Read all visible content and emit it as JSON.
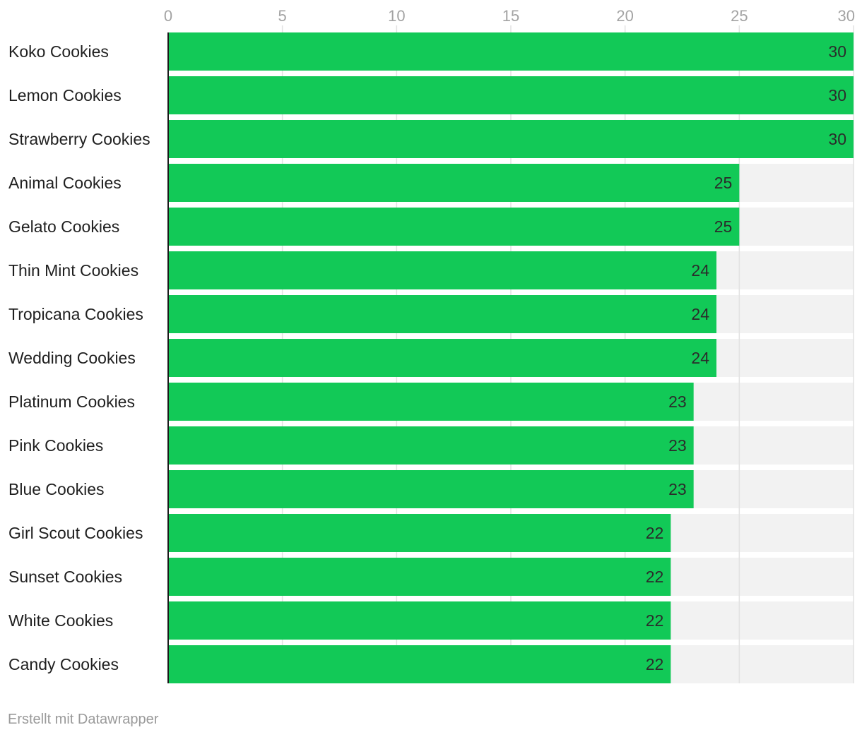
{
  "chart_data": {
    "type": "bar",
    "orientation": "horizontal",
    "categories": [
      "Koko Cookies",
      "Lemon Cookies",
      "Strawberry Cookies",
      "Animal Cookies",
      "Gelato Cookies",
      "Thin Mint Cookies",
      "Tropicana Cookies",
      "Wedding Cookies",
      "Platinum Cookies",
      "Pink Cookies",
      "Blue Cookies",
      "Girl Scout Cookies",
      "Sunset Cookies",
      "White Cookies",
      "Candy Cookies"
    ],
    "values": [
      30,
      30,
      30,
      25,
      25,
      24,
      24,
      24,
      23,
      23,
      23,
      22,
      22,
      22,
      22
    ],
    "xlim": [
      0,
      30
    ],
    "xticks": [
      0,
      5,
      10,
      15,
      20,
      25,
      30
    ],
    "grid": true,
    "data_labels": true,
    "title": "",
    "xlabel": "",
    "ylabel": ""
  },
  "colors": {
    "bar": "#12c957",
    "track": "#f2f2f2",
    "grid": "#e2e2e2",
    "tick_label": "#a3a3a3",
    "category_label": "#1f1f1f",
    "value_label": "#2b2b2b",
    "axis": "#1a1a1a"
  },
  "footer": {
    "credit": "Erstellt mit Datawrapper"
  }
}
